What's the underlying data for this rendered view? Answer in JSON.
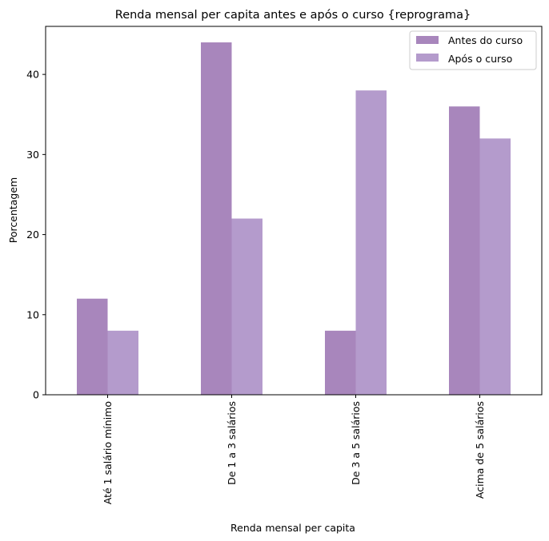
{
  "chart_data": {
    "type": "bar",
    "title": "Renda mensal per capita antes e após o curso {reprograma}",
    "xlabel": "Renda mensal per capita",
    "ylabel": "Porcentagem",
    "categories": [
      "Até 1 salário mínimo",
      "De 1 a 3 salários",
      "De 3 a 5 salários",
      "Acima de 5 salários"
    ],
    "series": [
      {
        "name": "Antes do curso",
        "values": [
          12,
          44,
          8,
          36
        ],
        "color": "#a886bc"
      },
      {
        "name": "Após o curso",
        "values": [
          8,
          22,
          38,
          32
        ],
        "color": "#b49bcc"
      }
    ],
    "ylim": [
      0,
      46
    ],
    "yticks": [
      0,
      10,
      20,
      30,
      40
    ],
    "grid": false,
    "legend_position": "top-right"
  }
}
